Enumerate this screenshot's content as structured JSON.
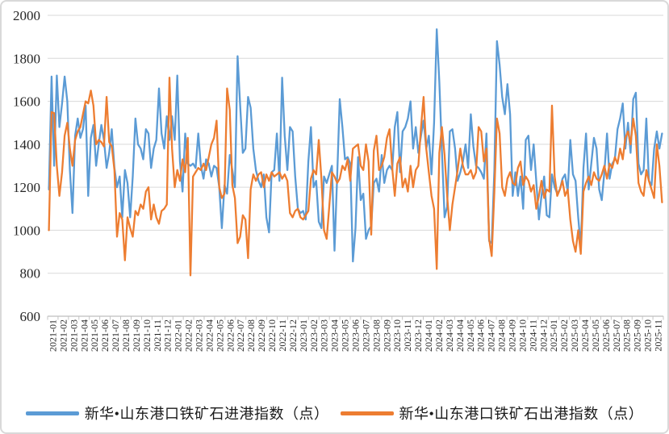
{
  "legend": {
    "inbound_label": "新华•山东港口铁矿石进港指数（点）",
    "outbound_label": "新华•山东港口铁矿石出港指数（点）"
  },
  "colors": {
    "inbound": "#5B9BD5",
    "outbound": "#ED7D31",
    "gridline": "#D9D9D9",
    "axis": "#BFBFBF",
    "tick_text": "#262626"
  },
  "chart_data": {
    "type": "line",
    "title": "",
    "xlabel": "",
    "ylabel": "",
    "ylim": [
      600,
      2000
    ],
    "y_ticks": [
      600,
      800,
      1000,
      1200,
      1400,
      1600,
      1800,
      2000
    ],
    "grid": true,
    "legend_position": "bottom",
    "points_per_month": 4,
    "x_tick_labels": [
      "2021-01",
      "2021-02",
      "2021-03",
      "2021-04",
      "2021-05",
      "2021-06",
      "2021-07",
      "2021-08",
      "2021-09",
      "2021-10",
      "2021-11",
      "2021-12",
      "2022-01",
      "2022-02",
      "2022-03",
      "2022-04",
      "2022-05",
      "2022-06",
      "2022-07",
      "2022-08",
      "2022-09",
      "2022-10",
      "2022-11",
      "2022-12",
      "2023-01",
      "2023-02",
      "2023-03",
      "2023-04",
      "2023-05",
      "2023-06",
      "2023-07",
      "2023-08",
      "2023-09",
      "2023-10",
      "2023-11",
      "2023-12",
      "2024-01",
      "2024-02",
      "2024-03",
      "2024-04",
      "2024-05",
      "2024-06",
      "2024-07",
      "2024-08",
      "2024-09",
      "2024-10",
      "2024-11",
      "2024-12",
      "2025-01",
      "2025-02",
      "2025-03",
      "2025-04",
      "2025-05",
      "2025-06",
      "2025-07",
      "2025-08",
      "2025-09",
      "2025-10",
      "2025-11"
    ],
    "series": [
      {
        "name": "新华•山东港口铁矿石进港指数（点）",
        "color": "#5B9BD5",
        "values": [
          1190,
          1715,
          1300,
          1720,
          1480,
          1590,
          1715,
          1600,
          1280,
          1080,
          1440,
          1520,
          1430,
          1470,
          1580,
          1160,
          1430,
          1490,
          1300,
          1400,
          1490,
          1420,
          1290,
          1360,
          1470,
          1290,
          1200,
          1250,
          1060,
          1280,
          1220,
          1060,
          1250,
          1520,
          1400,
          1380,
          1330,
          1470,
          1450,
          1290,
          1380,
          1420,
          1660,
          1450,
          1380,
          1530,
          1420,
          1530,
          1420,
          1720,
          1320,
          1180,
          1450,
          1310,
          1300,
          1310,
          1290,
          1450,
          1300,
          1240,
          1330,
          1310,
          1250,
          1300,
          1290,
          1200,
          1010,
          1210,
          1170,
          1350,
          1280,
          1200,
          1810,
          1580,
          1360,
          1380,
          1620,
          1570,
          1380,
          1280,
          1230,
          1200,
          1260,
          1060,
          990,
          1270,
          1280,
          1450,
          1230,
          1710,
          1440,
          1280,
          1480,
          1460,
          1250,
          1100,
          1080,
          1090,
          1050,
          1320,
          1480,
          1200,
          1230,
          1040,
          1010,
          1250,
          1220,
          1260,
          1300,
          905,
          1250,
          1610,
          1480,
          1330,
          1340,
          1310,
          855,
          1010,
          1340,
          1140,
          1170,
          960,
          1000,
          1020,
          1220,
          1240,
          1180,
          1350,
          1220,
          1280,
          1300,
          1280,
          1480,
          1550,
          1270,
          1460,
          1480,
          1520,
          1600,
          1380,
          1480,
          1360,
          1440,
          1510,
          1380,
          1440,
          1260,
          1500,
          1935,
          1690,
          1370,
          1060,
          1110,
          1460,
          1470,
          1380,
          1230,
          1270,
          1320,
          1400,
          1290,
          1540,
          1390,
          1300,
          1290,
          1270,
          1240,
          1450,
          950,
          940,
          1280,
          1880,
          1770,
          1620,
          1540,
          1680,
          1540,
          1160,
          1270,
          1160,
          1250,
          1100,
          1420,
          1440,
          1280,
          1400,
          1230,
          1050,
          1160,
          1250,
          1070,
          1060,
          1260,
          1200,
          1170,
          1190,
          1240,
          1260,
          1180,
          1420,
          1260,
          1230,
          1060,
          920,
          1290,
          1450,
          1190,
          1310,
          1430,
          1380,
          1190,
          1140,
          1270,
          1450,
          1240,
          1310,
          1330,
          1470,
          1520,
          1590,
          1380,
          1500,
          1360,
          1610,
          1640,
          1310,
          1260,
          1280,
          1520,
          1230,
          1210,
          1380,
          1460,
          1380,
          1450
        ]
      },
      {
        "name": "新华•山东港口铁矿石出港指数（点）",
        "color": "#ED7D31",
        "values": [
          1000,
          1550,
          1545,
          1300,
          1160,
          1270,
          1440,
          1500,
          1380,
          1300,
          1420,
          1460,
          1480,
          1540,
          1600,
          1590,
          1650,
          1580,
          1400,
          1420,
          1410,
          1390,
          1620,
          1410,
          1390,
          1280,
          970,
          1080,
          1050,
          860,
          1060,
          1010,
          970,
          1090,
          1070,
          1120,
          1100,
          1180,
          1200,
          1050,
          1120,
          1060,
          1030,
          1090,
          1100,
          1120,
          1710,
          1380,
          1200,
          1280,
          1230,
          1330,
          1270,
          1430,
          790,
          1250,
          1270,
          1290,
          1280,
          1310,
          1280,
          1340,
          1400,
          1430,
          1510,
          1200,
          1150,
          1170,
          1660,
          1560,
          1210,
          1150,
          940,
          970,
          1070,
          1050,
          870,
          1190,
          1260,
          1230,
          1260,
          1270,
          1200,
          1260,
          1230,
          1270,
          1250,
          1260,
          1270,
          1240,
          1260,
          1230,
          1080,
          1060,
          1090,
          1100,
          1060,
          1050,
          1070,
          1090,
          1240,
          1280,
          1260,
          1420,
          1240,
          1000,
          960,
          1110,
          1270,
          1250,
          1220,
          1240,
          1300,
          1280,
          1330,
          1230,
          1380,
          1390,
          1400,
          1300,
          1280,
          1400,
          1320,
          980,
          1370,
          1440,
          1280,
          1300,
          1340,
          1430,
          1470,
          1290,
          1160,
          1310,
          1340,
          1200,
          1240,
          1180,
          1300,
          1200,
          1280,
          1300,
          1480,
          1620,
          1380,
          1270,
          1160,
          1100,
          820,
          1360,
          1480,
          1350,
          1160,
          1000,
          1120,
          1200,
          1280,
          1380,
          1300,
          1260,
          1260,
          1280,
          1240,
          1270,
          1480,
          1460,
          1320,
          1380,
          960,
          880,
          1180,
          1520,
          1450,
          1200,
          1160,
          1240,
          1270,
          1220,
          1210,
          1290,
          1320,
          1210,
          1250,
          1230,
          1180,
          1210,
          1100,
          1160,
          1230,
          1150,
          1190,
          1180,
          1580,
          1250,
          1160,
          1190,
          1230,
          1160,
          1190,
          1050,
          950,
          900,
          1000,
          890,
          1180,
          1220,
          1250,
          1210,
          1270,
          1240,
          1230,
          1260,
          1300,
          1240,
          1310,
          1290,
          1340,
          1310,
          1380,
          1330,
          1430,
          1460,
          1400,
          1520,
          1440,
          1220,
          1180,
          1160,
          1280,
          1230,
          1190,
          1150,
          1400,
          1300,
          1130
        ]
      }
    ]
  }
}
